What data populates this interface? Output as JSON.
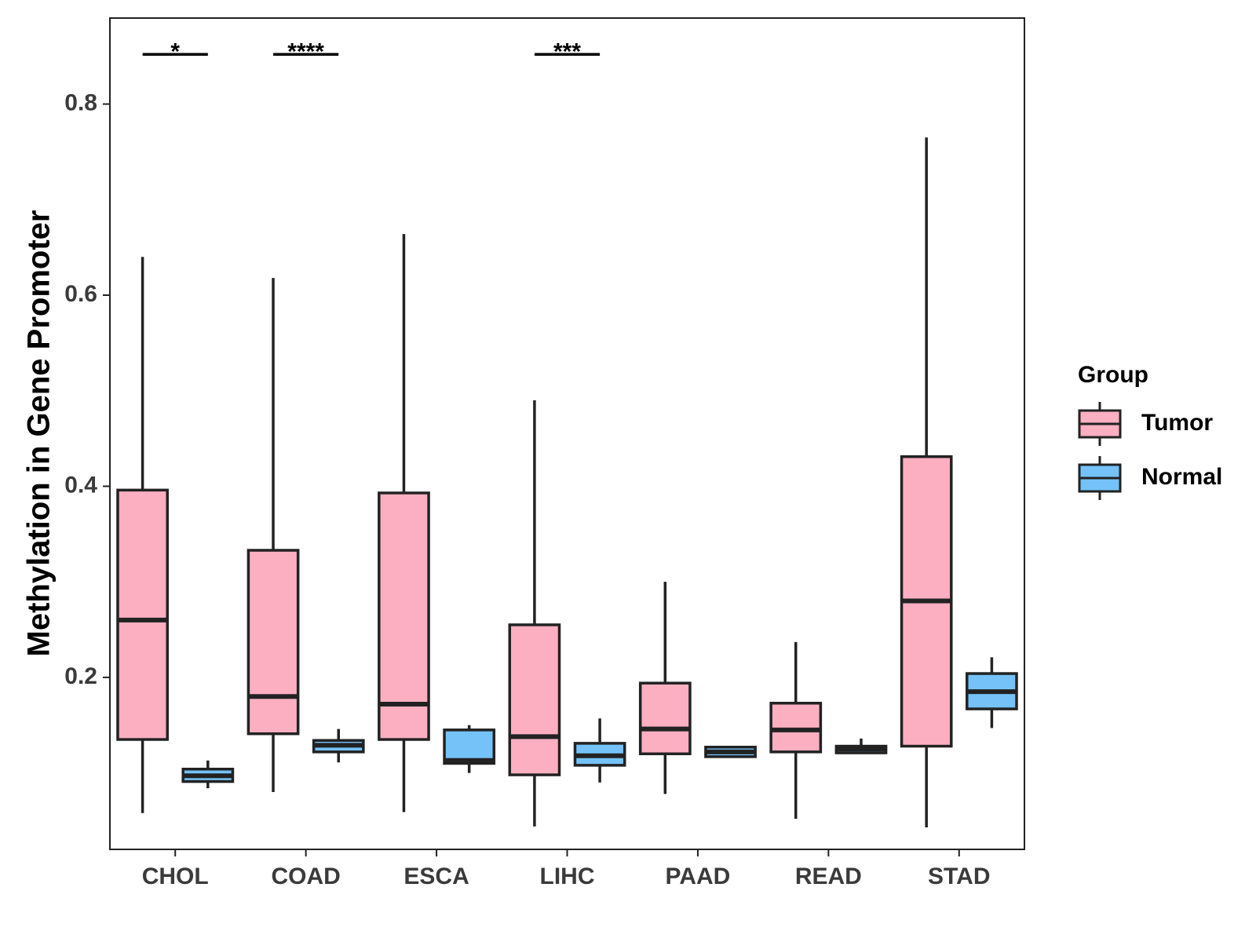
{
  "chart_data": {
    "type": "box",
    "ylabel": "Methylation in Gene Promoter",
    "xlabel": "",
    "ylim": [
      0.02,
      0.89
    ],
    "yticks": [
      0.2,
      0.4,
      0.6,
      0.8
    ],
    "ytick_labels": [
      "0.2",
      "0.4",
      "0.6",
      "0.8"
    ],
    "categories": [
      "CHOL",
      "COAD",
      "ESCA",
      "LIHC",
      "PAAD",
      "READ",
      "STAD"
    ],
    "legend": {
      "title": "Group",
      "position": "right",
      "entries": [
        "Tumor",
        "Normal"
      ]
    },
    "colors": {
      "Tumor": "#fbafc1",
      "Normal": "#74c2f8",
      "stroke": "#222222"
    },
    "series": [
      {
        "name": "Tumor",
        "boxes": [
          {
            "min": 0.058,
            "q1": 0.135,
            "median": 0.26,
            "q3": 0.396,
            "max": 0.64
          },
          {
            "min": 0.08,
            "q1": 0.141,
            "median": 0.18,
            "q3": 0.333,
            "max": 0.618
          },
          {
            "min": 0.059,
            "q1": 0.135,
            "median": 0.172,
            "q3": 0.393,
            "max": 0.664
          },
          {
            "min": 0.044,
            "q1": 0.098,
            "median": 0.138,
            "q3": 0.255,
            "max": 0.49
          },
          {
            "min": 0.078,
            "q1": 0.12,
            "median": 0.146,
            "q3": 0.194,
            "max": 0.3
          },
          {
            "min": 0.052,
            "q1": 0.122,
            "median": 0.145,
            "q3": 0.173,
            "max": 0.237
          },
          {
            "min": 0.043,
            "q1": 0.128,
            "median": 0.28,
            "q3": 0.431,
            "max": 0.765
          }
        ]
      },
      {
        "name": "Normal",
        "boxes": [
          {
            "min": 0.084,
            "q1": 0.091,
            "median": 0.097,
            "q3": 0.104,
            "max": 0.113
          },
          {
            "min": 0.111,
            "q1": 0.122,
            "median": 0.129,
            "q3": 0.134,
            "max": 0.146
          },
          {
            "min": 0.1,
            "q1": 0.11,
            "median": 0.113,
            "q3": 0.145,
            "max": 0.15
          },
          {
            "min": 0.09,
            "q1": 0.108,
            "median": 0.118,
            "q3": 0.131,
            "max": 0.157
          },
          {
            "min": 0.117,
            "q1": 0.117,
            "median": 0.122,
            "q3": 0.127,
            "max": 0.127
          },
          {
            "min": 0.121,
            "q1": 0.121,
            "median": 0.125,
            "q3": 0.128,
            "max": 0.136
          },
          {
            "min": 0.147,
            "q1": 0.167,
            "median": 0.185,
            "q3": 0.204,
            "max": 0.221
          }
        ]
      }
    ],
    "significance": [
      {
        "category": "CHOL",
        "label": "*",
        "y": 0.852
      },
      {
        "category": "COAD",
        "label": "****",
        "y": 0.852
      },
      {
        "category": "LIHC",
        "label": "***",
        "y": 0.852
      }
    ]
  }
}
